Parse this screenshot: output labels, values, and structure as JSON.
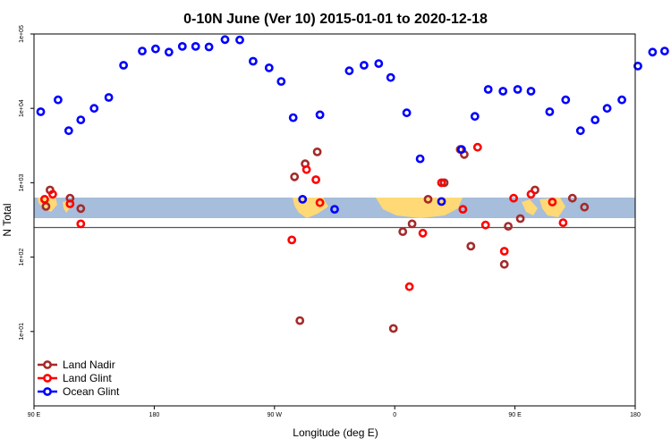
{
  "chart_data": {
    "type": "scatter",
    "title": "0-10N June (Ver 10)   2015-01-01 to 2020-12-18",
    "xlabel": "Longitude (deg E)",
    "ylabel": "N Total",
    "x_ticks": [
      {
        "value": 90,
        "label": "90 E"
      },
      {
        "value": 180,
        "label": "180"
      },
      {
        "value": 270,
        "label": "90 W"
      },
      {
        "value": 360,
        "label": "0"
      },
      {
        "value": 450,
        "label": "90 E"
      },
      {
        "value": 540,
        "label": "180"
      }
    ],
    "xlim": [
      90,
      540
    ],
    "y_scale": "log",
    "ylim": [
      1,
      100000
    ],
    "y_ticks": [
      {
        "value": 10,
        "label": "1e+01"
      },
      {
        "value": 100,
        "label": "1e+02"
      },
      {
        "value": 1000,
        "label": "1e+03"
      },
      {
        "value": 10000,
        "label": "1e+04"
      },
      {
        "value": 100000,
        "label": "1e+05"
      }
    ],
    "reference_line_y": 250,
    "legend_position": "bottom-left",
    "colors": {
      "land_nadir": "#a52a2a",
      "land_glint": "#ff0000",
      "ocean_glint": "#0000ff",
      "map_ocean": "#a6bddb",
      "map_land": "#fed976"
    },
    "series": [
      {
        "name": "Land Nadir",
        "color": "#a52a2a",
        "points": [
          [
            99,
            480
          ],
          [
            102,
            800
          ],
          [
            117,
            620
          ],
          [
            125,
            450
          ],
          [
            285,
            1200
          ],
          [
            289,
            14
          ],
          [
            293,
            1800
          ],
          [
            302,
            2600
          ],
          [
            359,
            11
          ],
          [
            366,
            220
          ],
          [
            373,
            280
          ],
          [
            385,
            600
          ],
          [
            397,
            1000
          ],
          [
            409,
            2800
          ],
          [
            412,
            2400
          ],
          [
            417,
            140
          ],
          [
            442,
            80
          ],
          [
            445,
            260
          ],
          [
            454,
            330
          ],
          [
            465,
            800
          ],
          [
            493,
            620
          ],
          [
            502,
            470
          ]
        ]
      },
      {
        "name": "Land Glint",
        "color": "#ff0000",
        "points": [
          [
            98,
            600
          ],
          [
            104,
            700
          ],
          [
            117,
            520
          ],
          [
            125,
            280
          ],
          [
            283,
            170
          ],
          [
            294,
            1500
          ],
          [
            301,
            1100
          ],
          [
            304,
            540
          ],
          [
            371,
            40
          ],
          [
            381,
            210
          ],
          [
            395,
            1000
          ],
          [
            411,
            440
          ],
          [
            422,
            3000
          ],
          [
            428,
            270
          ],
          [
            442,
            120
          ],
          [
            449,
            620
          ],
          [
            462,
            700
          ],
          [
            478,
            550
          ],
          [
            486,
            290
          ]
        ]
      },
      {
        "name": "Ocean Glint",
        "color": "#0000ff",
        "points": [
          [
            95,
            9000
          ],
          [
            108,
            13000
          ],
          [
            116,
            5000
          ],
          [
            125,
            7000
          ],
          [
            135,
            10000
          ],
          [
            146,
            14000
          ],
          [
            157,
            38000
          ],
          [
            171,
            59000
          ],
          [
            181,
            63000
          ],
          [
            191,
            57000
          ],
          [
            201,
            68000
          ],
          [
            211,
            68000
          ],
          [
            221,
            67000
          ],
          [
            233,
            84000
          ],
          [
            244,
            83000
          ],
          [
            254,
            43000
          ],
          [
            266,
            35000
          ],
          [
            275,
            23000
          ],
          [
            284,
            7500
          ],
          [
            291,
            600
          ],
          [
            304,
            8200
          ],
          [
            315,
            440
          ],
          [
            326,
            32000
          ],
          [
            337,
            38000
          ],
          [
            348,
            40000
          ],
          [
            357,
            26000
          ],
          [
            369,
            8700
          ],
          [
            379,
            2100
          ],
          [
            395,
            560
          ],
          [
            410,
            2800
          ],
          [
            420,
            7800
          ],
          [
            430,
            18000
          ],
          [
            441,
            17000
          ],
          [
            452,
            18000
          ],
          [
            462,
            17000
          ],
          [
            476,
            9000
          ],
          [
            488,
            13000
          ],
          [
            499,
            5000
          ],
          [
            510,
            7000
          ],
          [
            519,
            10000
          ],
          [
            530,
            13000
          ],
          [
            542,
            37000
          ],
          [
            553,
            57000
          ],
          [
            562,
            59000
          ]
        ]
      }
    ]
  }
}
